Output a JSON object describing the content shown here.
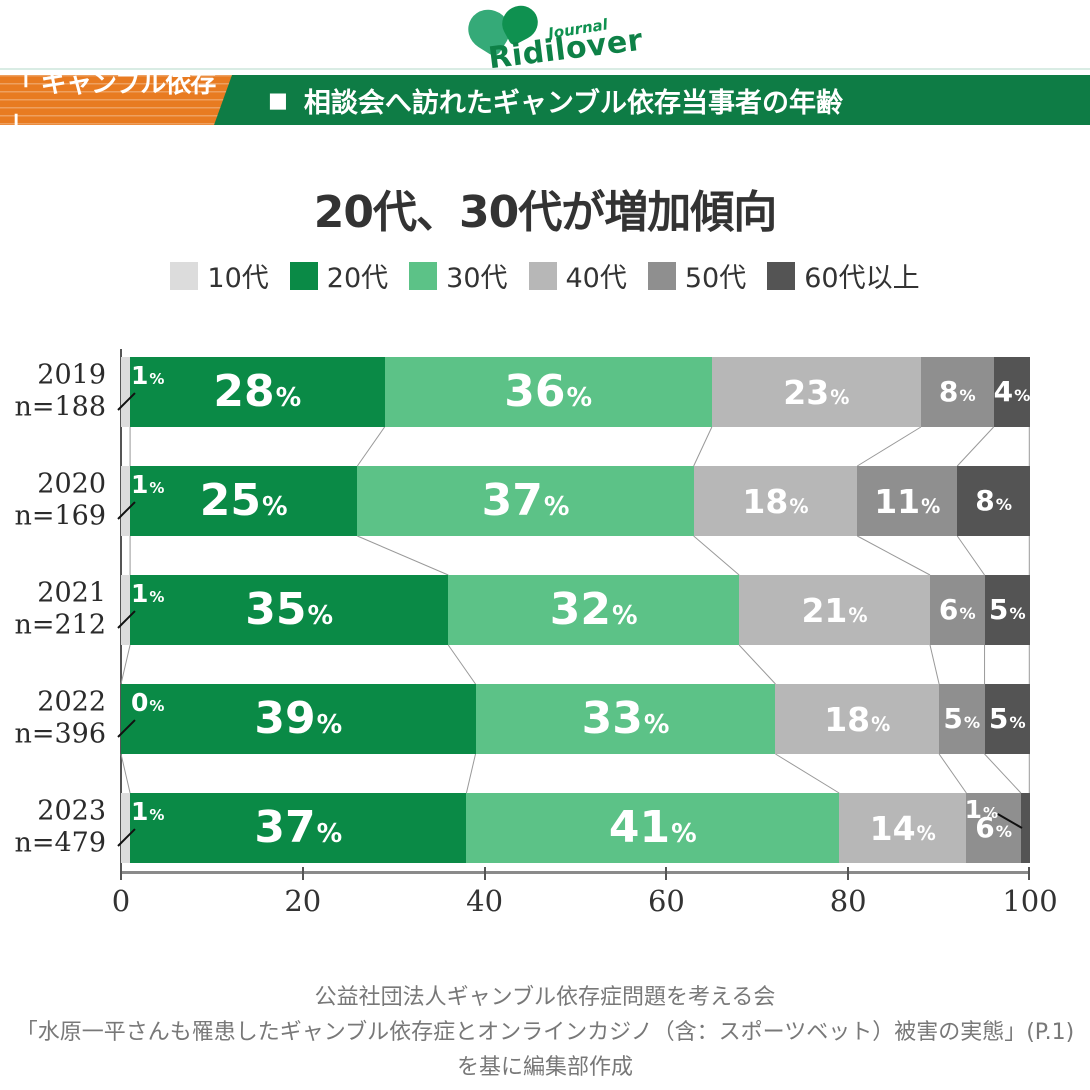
{
  "logo": {
    "journal": "Journal",
    "name": "Ridilover"
  },
  "header": {
    "tag": "「 ギャンブル依存 」",
    "bullet": "■",
    "title": "相談会へ訪れたギャンブル依存当事者の年齢"
  },
  "main_title": "20代、30代が増加傾向",
  "chart_data": {
    "type": "bar",
    "stacked": true,
    "orientation": "horizontal",
    "title": "20代、30代が増加傾向",
    "xlim": [
      0,
      100
    ],
    "xticks": [
      0,
      20,
      40,
      60,
      80,
      100
    ],
    "legend_position": "top",
    "rows": [
      {
        "year": "2019",
        "n_label": "n=188"
      },
      {
        "year": "2020",
        "n_label": "n=169"
      },
      {
        "year": "2021",
        "n_label": "n=212"
      },
      {
        "year": "2022",
        "n_label": "n=396"
      },
      {
        "year": "2023",
        "n_label": "n=479"
      }
    ],
    "series": [
      {
        "name": "10代",
        "color": "#dcdcdc",
        "values": [
          1,
          1,
          1,
          0,
          1
        ]
      },
      {
        "name": "20代",
        "color": "#0a8a46",
        "values": [
          28,
          25,
          35,
          39,
          37
        ]
      },
      {
        "name": "30代",
        "color": "#5cc287",
        "values": [
          36,
          37,
          32,
          33,
          41
        ]
      },
      {
        "name": "40代",
        "color": "#b7b7b7",
        "values": [
          23,
          18,
          21,
          18,
          14
        ]
      },
      {
        "name": "50代",
        "color": "#8f8f8f",
        "values": [
          8,
          11,
          6,
          5,
          6
        ]
      },
      {
        "name": "60代以上",
        "color": "#545454",
        "values": [
          4,
          8,
          5,
          5,
          1
        ]
      }
    ]
  },
  "footer": {
    "lines": [
      "公益社団法人ギャンブル依存症問題を考える会",
      "「水原一平さんも罹患したギャンブル依存症とオンラインカジノ（含：スポーツベット）被害の実態」(P.1)",
      "を基に編集部作成"
    ]
  },
  "colors": {
    "header_green": "#0e7c45",
    "ribbon_orange": "#e87b21",
    "connector_gray": "#999999",
    "axis_gray": "#8a8a8a"
  }
}
